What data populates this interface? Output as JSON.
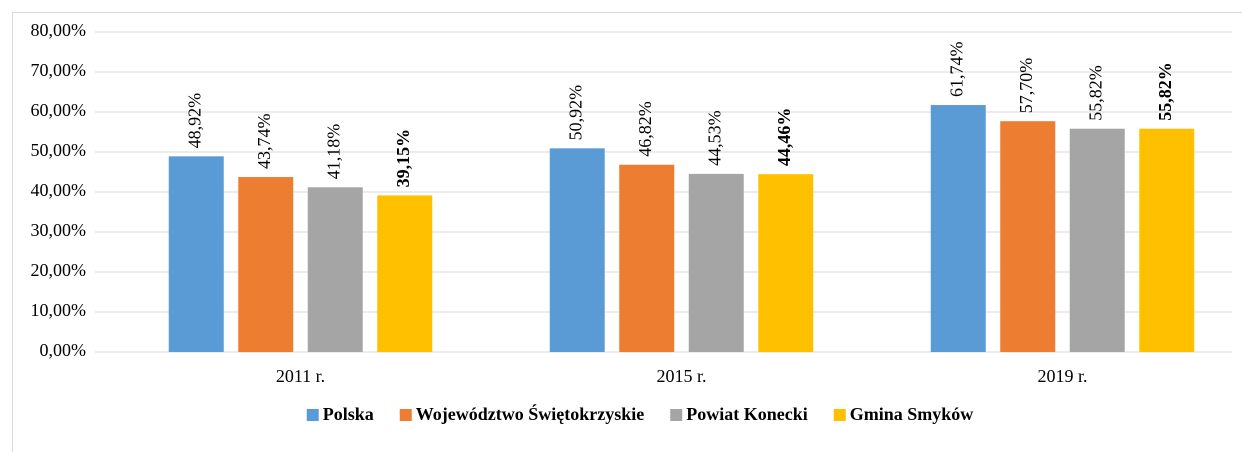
{
  "chart_data": {
    "type": "bar",
    "categories": [
      "2011 r.",
      "2015 r.",
      "2019 r."
    ],
    "series": [
      {
        "name": "Polska",
        "color": "#5b9bd5",
        "values": [
          48.92,
          50.92,
          61.74
        ],
        "value_labels": [
          "48,92%",
          "50,92%",
          "61,74%"
        ]
      },
      {
        "name": "Województwo Świętokrzyskie",
        "color": "#ed7d31",
        "values": [
          43.74,
          46.82,
          57.7
        ],
        "value_labels": [
          "43,74%",
          "46,82%",
          "57,70%"
        ]
      },
      {
        "name": "Powiat Konecki",
        "color": "#a5a5a5",
        "values": [
          41.18,
          44.53,
          55.82
        ],
        "value_labels": [
          "41,18%",
          "44,53%",
          "55,82%"
        ]
      },
      {
        "name": "Gmina Smyków",
        "color": "#ffc000",
        "values": [
          39.15,
          44.46,
          55.82
        ],
        "value_labels": [
          "39,15%",
          "44,46%",
          "55,82%"
        ]
      }
    ],
    "ylim": [
      0,
      80
    ],
    "yticks": [
      {
        "value": 0,
        "label": "0,00%"
      },
      {
        "value": 10,
        "label": "10,00%"
      },
      {
        "value": 20,
        "label": "20,00%"
      },
      {
        "value": 30,
        "label": "30,00%"
      },
      {
        "value": 40,
        "label": "40,00%"
      },
      {
        "value": 50,
        "label": "50,00%"
      },
      {
        "value": 60,
        "label": "60,00%"
      },
      {
        "value": 70,
        "label": "70,00%"
      },
      {
        "value": 80,
        "label": "80,00%"
      }
    ],
    "grid": true,
    "legend": "bottom"
  }
}
